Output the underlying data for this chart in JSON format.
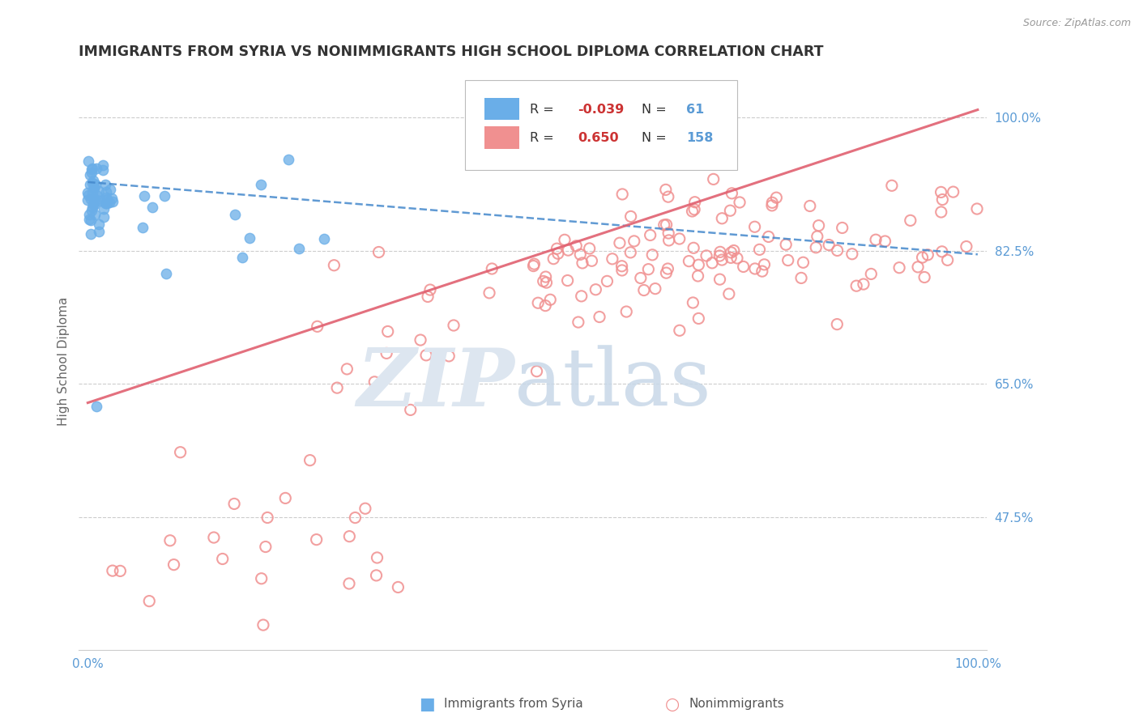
{
  "title": "IMMIGRANTS FROM SYRIA VS NONIMMIGRANTS HIGH SCHOOL DIPLOMA CORRELATION CHART",
  "source": "Source: ZipAtlas.com",
  "ylabel": "High School Diploma",
  "blue_R": -0.039,
  "blue_N": 61,
  "pink_R": 0.65,
  "pink_N": 158,
  "blue_color": "#6aaee8",
  "pink_color": "#f09090",
  "blue_line_color": "#4488cc",
  "pink_line_color": "#e06070",
  "axis_label_color": "#5B9BD5",
  "ylim": [
    0.3,
    1.06
  ],
  "xlim": [
    -0.01,
    1.01
  ],
  "yticks": [
    0.475,
    0.65,
    0.825,
    1.0
  ],
  "ytick_labels": [
    "47.5%",
    "65.0%",
    "82.5%",
    "100.0%"
  ],
  "xticks": [
    0.0,
    1.0
  ],
  "xtick_labels": [
    "0.0%",
    "100.0%"
  ]
}
